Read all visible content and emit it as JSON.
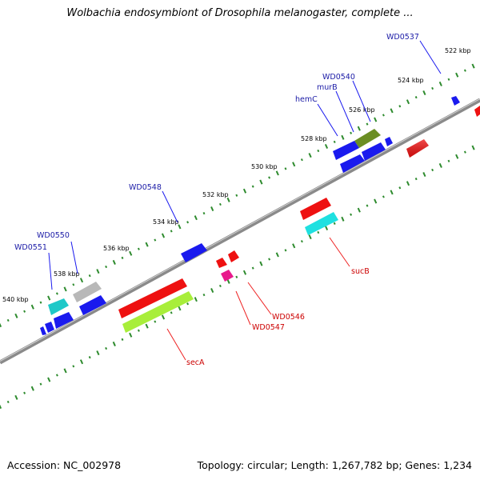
{
  "title": "Wolbachia endosymbiont of Drosophila melanogaster, complete ...",
  "footer": {
    "accession": "Accession: NC_002978",
    "summary": "Topology: circular; Length: 1,267,782 bp; Genes: 1,234"
  },
  "colors": {
    "backbone": "#8a8a8a",
    "tick": "#2e8b2e",
    "top_label": "#1a1aa6",
    "bottom_label": "#cc0000"
  },
  "kbp_ticks": [
    "522 kbp",
    "524 kbp",
    "526 kbp",
    "528 kbp",
    "530 kbp",
    "532 kbp",
    "534 kbp",
    "536 kbp",
    "538 kbp",
    "540 kbp"
  ],
  "top_labels": [
    "WD0537",
    "WD0540",
    "murB",
    "hemC",
    "WD0548",
    "WD0550",
    "WD0551"
  ],
  "bottom_labels": [
    "sucB",
    "WD0546",
    "WD0547",
    "secA"
  ]
}
